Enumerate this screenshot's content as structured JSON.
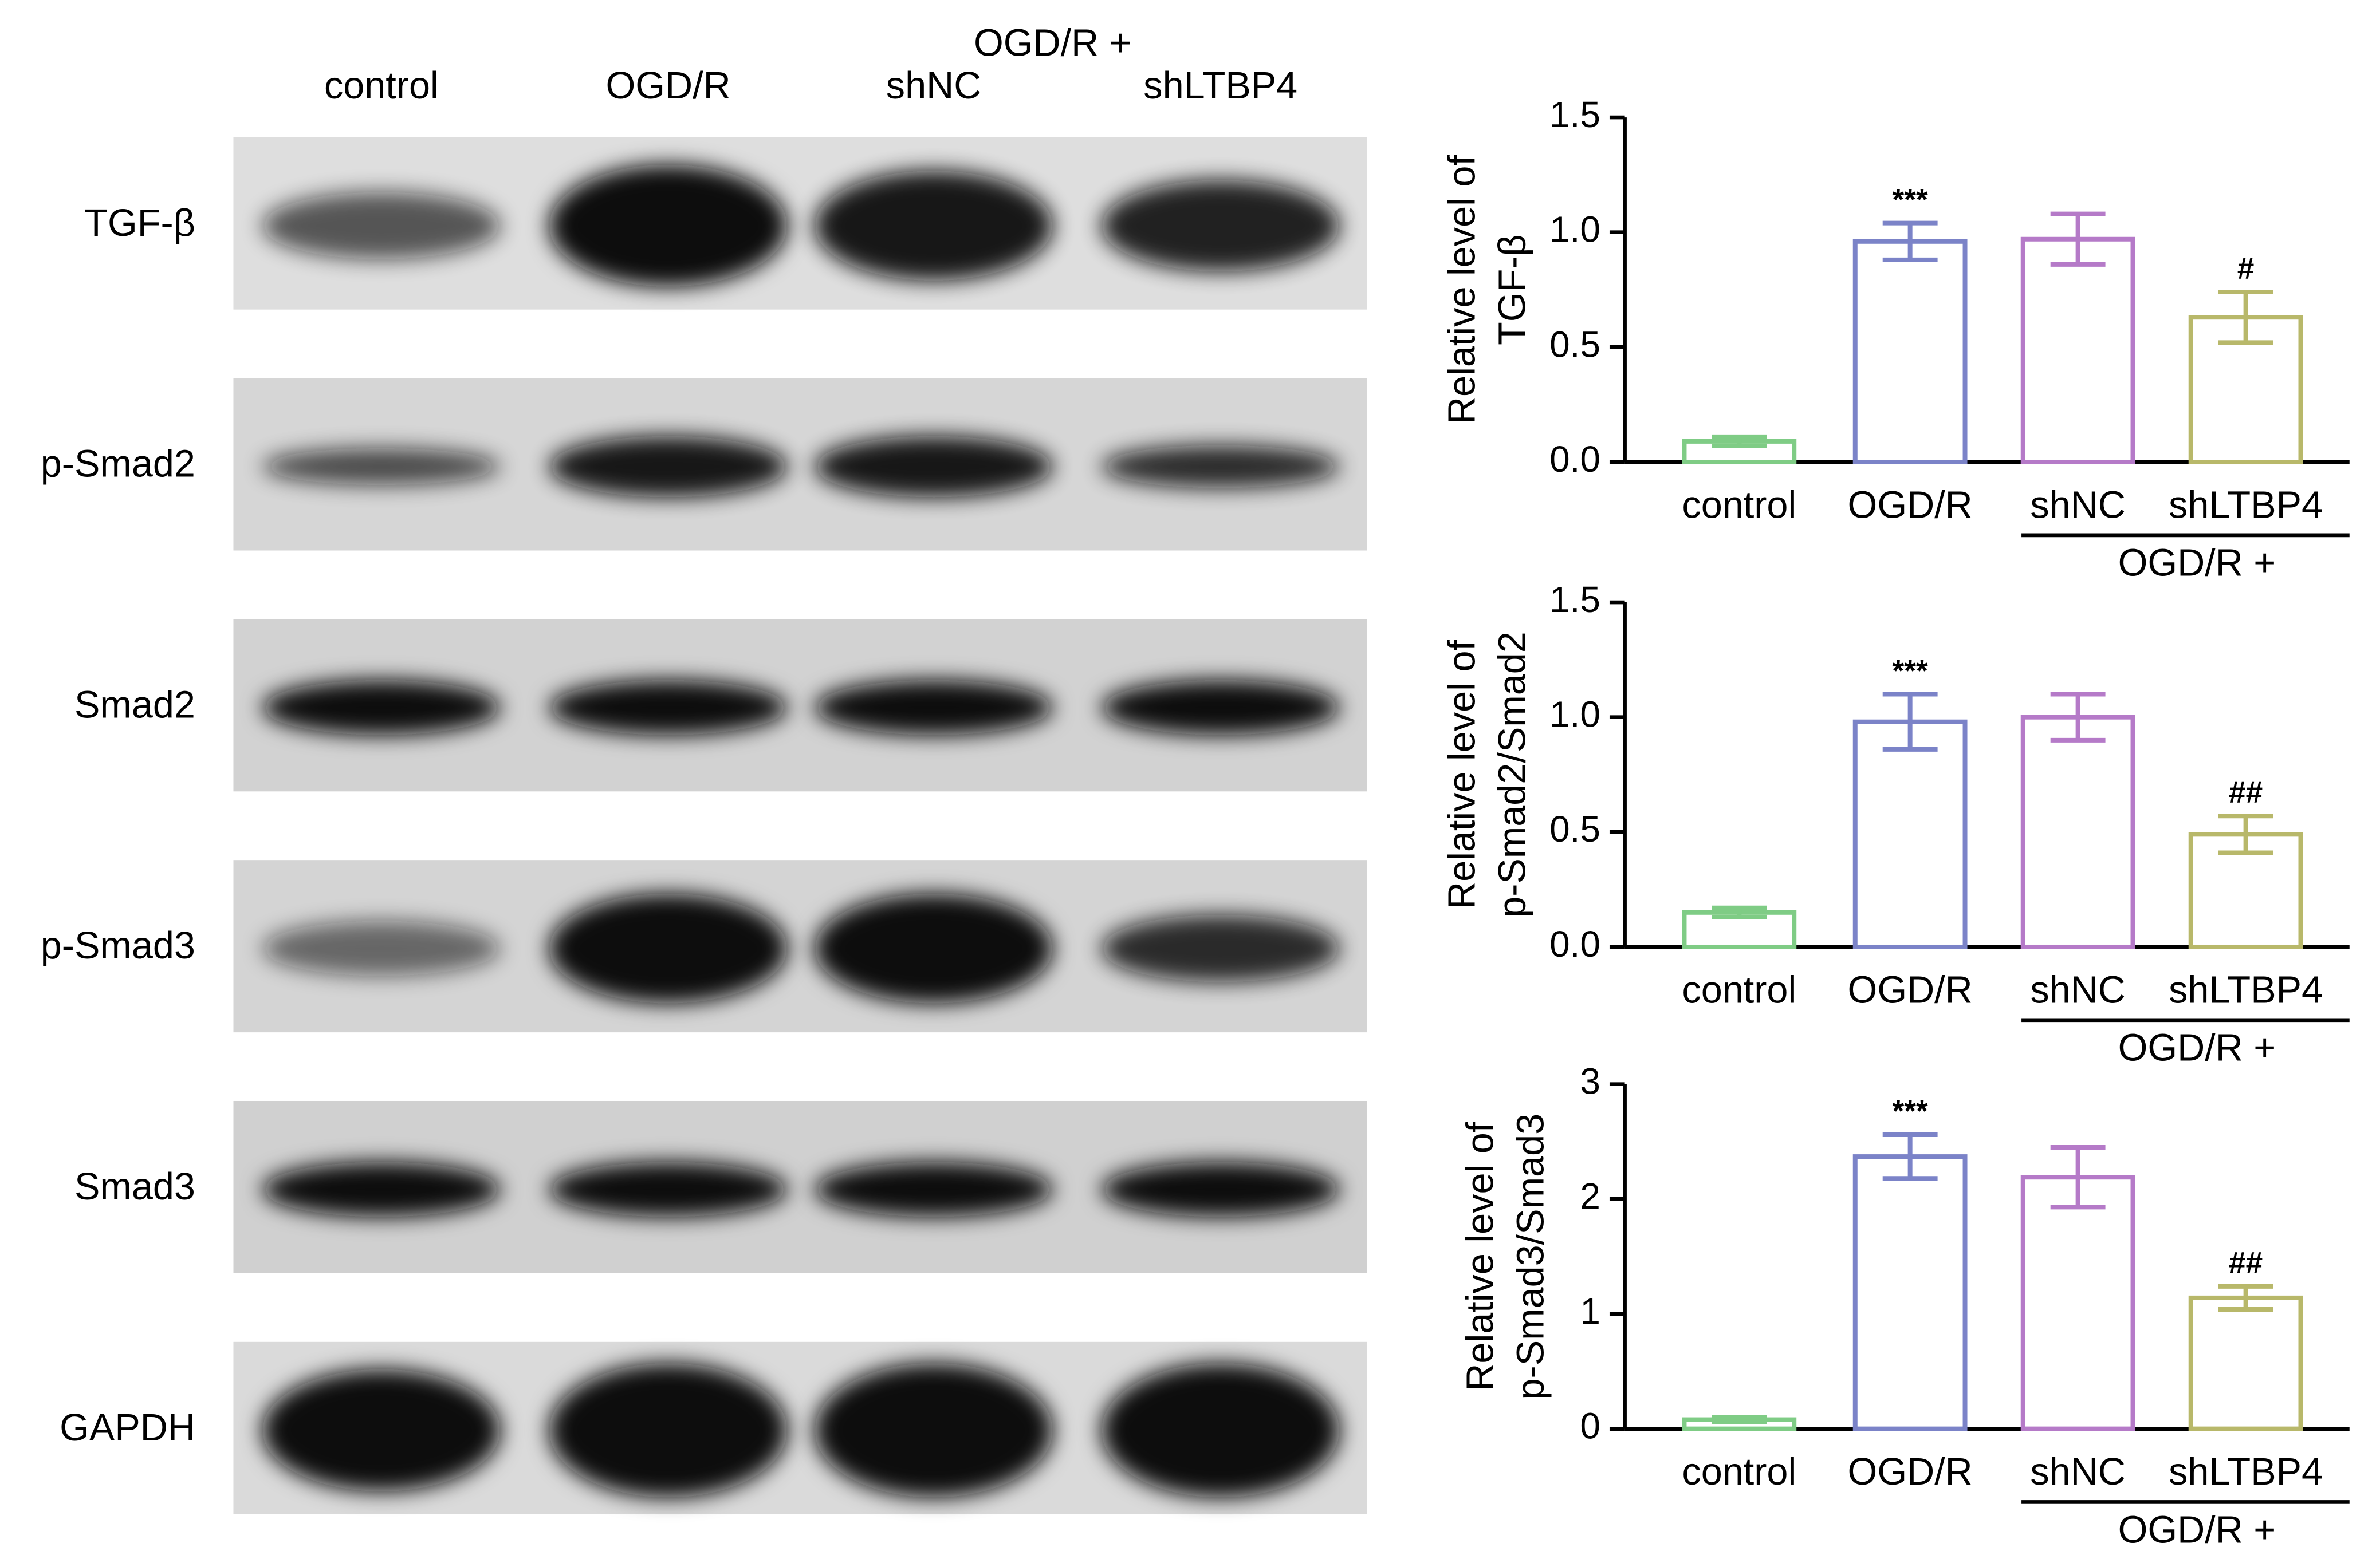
{
  "blot": {
    "group_label": "OGD/R +",
    "lanes": [
      "control",
      "OGD/R",
      "shNC",
      "shLTBP4"
    ],
    "rows": [
      "TGF-β",
      "p-Smad2",
      "Smad2",
      "p-Smad3",
      "Smad3",
      "GAPDH"
    ]
  },
  "chart_data": [
    {
      "type": "bar",
      "ylabel": [
        "Relative level of",
        "TGF-β"
      ],
      "categories": [
        "control",
        "OGD/R",
        "shNC",
        "shLTBP4"
      ],
      "group_label": "OGD/R +",
      "values": [
        0.09,
        0.96,
        0.97,
        0.63
      ],
      "errors": [
        0.02,
        0.08,
        0.11,
        0.11
      ],
      "value_annotations": [
        null,
        "***",
        null,
        "#"
      ],
      "colors": [
        "#7fcc85",
        "#7b83c8",
        "#b57ac8",
        "#b8b86a"
      ],
      "ylim": [
        0,
        1.5
      ],
      "yticks": [
        {
          "value": 0,
          "label": "0.0"
        },
        0.5,
        {
          "value": 1,
          "label": "1.0"
        },
        1.5
      ]
    },
    {
      "type": "bar",
      "ylabel": [
        "Relative level of",
        "p-Smad2/Smad2"
      ],
      "categories": [
        "control",
        "OGD/R",
        "shNC",
        "shLTBP4"
      ],
      "group_label": "OGD/R +",
      "values": [
        0.15,
        0.98,
        1.0,
        0.49
      ],
      "errors": [
        0.02,
        0.12,
        0.1,
        0.08
      ],
      "value_annotations": [
        null,
        "***",
        null,
        "##"
      ],
      "colors": [
        "#7fcc85",
        "#7b83c8",
        "#b57ac8",
        "#b8b86a"
      ],
      "ylim": [
        0,
        1.5
      ],
      "yticks": [
        {
          "value": 0,
          "label": "0.0"
        },
        0.5,
        {
          "value": 1,
          "label": "1.0"
        },
        1.5
      ]
    },
    {
      "type": "bar",
      "ylabel": [
        "Relative level of",
        "p-Smad3/Smad3"
      ],
      "categories": [
        "control",
        "OGD/R",
        "shNC",
        "shLTBP4"
      ],
      "group_label": "OGD/R +",
      "values": [
        0.08,
        2.37,
        2.19,
        1.14
      ],
      "errors": [
        0.02,
        0.19,
        0.26,
        0.1
      ],
      "value_annotations": [
        null,
        "***",
        null,
        "##"
      ],
      "colors": [
        "#7fcc85",
        "#7b83c8",
        "#b57ac8",
        "#b8b86a"
      ],
      "ylim": [
        0,
        3
      ],
      "yticks": [
        0,
        1,
        2,
        3
      ]
    }
  ]
}
